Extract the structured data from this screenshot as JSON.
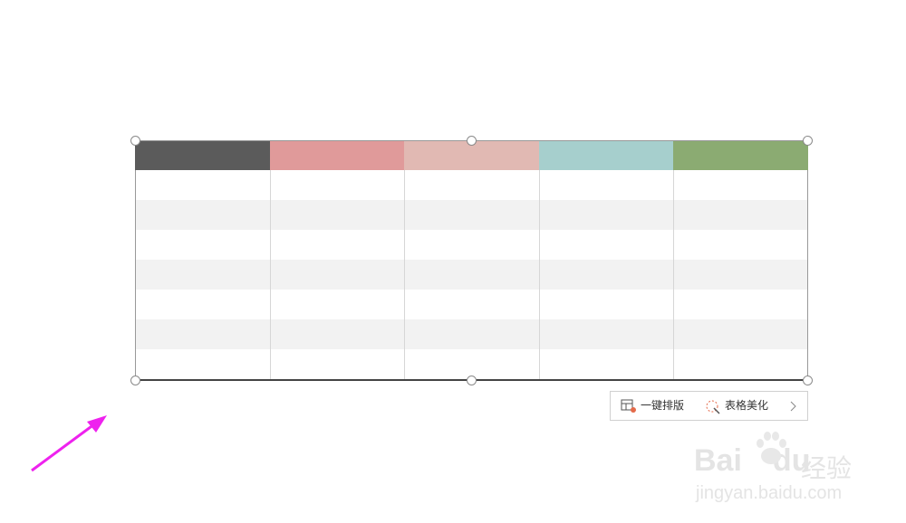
{
  "toolbar": {
    "buttons": [
      {
        "label": "一键排版"
      },
      {
        "label": "表格美化"
      }
    ]
  },
  "watermark": {
    "brand_left": "Bai",
    "brand_right": "du",
    "product": "经验",
    "url": "jingyan.baidu.com"
  }
}
